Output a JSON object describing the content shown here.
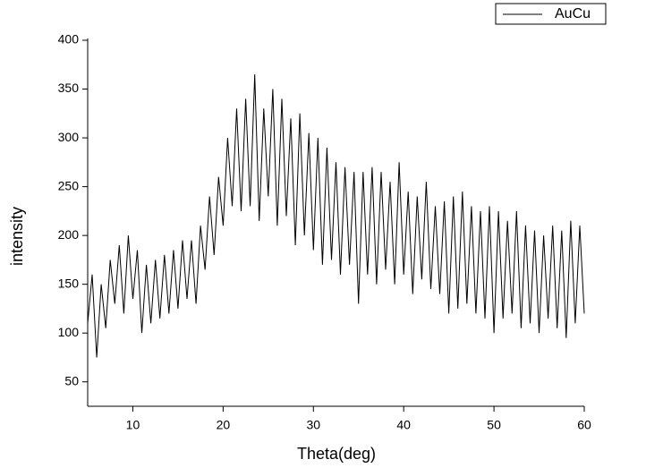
{
  "chart_data": {
    "type": "line",
    "x_label": "Theta(deg)",
    "y_label": "intensity",
    "x": [
      5,
      5.5,
      6,
      6.5,
      7,
      7.5,
      8,
      8.5,
      9,
      9.5,
      10,
      10.5,
      11,
      11.5,
      12,
      12.5,
      13,
      13.5,
      14,
      14.5,
      15,
      15.5,
      16,
      16.5,
      17,
      17.5,
      18,
      18.5,
      19,
      19.5,
      20,
      20.5,
      21,
      21.5,
      22,
      22.5,
      23,
      23.5,
      24,
      24.5,
      25,
      25.5,
      26,
      26.5,
      27,
      27.5,
      28,
      28.5,
      29,
      29.5,
      30,
      30.5,
      31,
      31.5,
      32,
      32.5,
      33,
      33.5,
      34,
      34.5,
      35,
      35.5,
      36,
      36.5,
      37,
      37.5,
      38,
      38.5,
      39,
      39.5,
      40,
      40.5,
      41,
      41.5,
      42,
      42.5,
      43,
      43.5,
      44,
      44.5,
      45,
      45.5,
      46,
      46.5,
      47,
      47.5,
      48,
      48.5,
      49,
      49.5,
      50,
      50.5,
      51,
      51.5,
      52,
      52.5,
      53,
      53.5,
      54,
      54.5,
      55,
      55.5,
      56,
      56.5,
      57,
      57.5,
      58,
      58.5,
      59,
      59.5,
      60
    ],
    "series": [
      {
        "name": "AuCu",
        "color": "#000000",
        "values": [
          110,
          160,
          75,
          150,
          105,
          175,
          130,
          190,
          120,
          200,
          135,
          185,
          100,
          170,
          110,
          175,
          115,
          180,
          120,
          185,
          125,
          195,
          135,
          195,
          130,
          210,
          165,
          240,
          180,
          260,
          210,
          300,
          230,
          330,
          225,
          340,
          230,
          365,
          215,
          330,
          240,
          350,
          210,
          340,
          220,
          320,
          190,
          325,
          200,
          305,
          185,
          300,
          170,
          290,
          175,
          275,
          160,
          270,
          170,
          265,
          130,
          265,
          160,
          270,
          150,
          265,
          165,
          255,
          150,
          275,
          160,
          245,
          140,
          240,
          155,
          255,
          145,
          230,
          140,
          235,
          120,
          240,
          125,
          245,
          130,
          230,
          120,
          225,
          115,
          230,
          100,
          225,
          115,
          215,
          120,
          225,
          105,
          210,
          110,
          205,
          100,
          200,
          115,
          210,
          105,
          205,
          95,
          215,
          110,
          210,
          120
        ]
      }
    ],
    "xlim": [
      5,
      60
    ],
    "xticks": [
      10,
      20,
      30,
      40,
      50,
      60
    ],
    "ylim": [
      25,
      400
    ],
    "yticks": [
      50,
      100,
      150,
      200,
      250,
      300,
      350,
      400
    ],
    "legend": "top-right",
    "grid": false
  }
}
